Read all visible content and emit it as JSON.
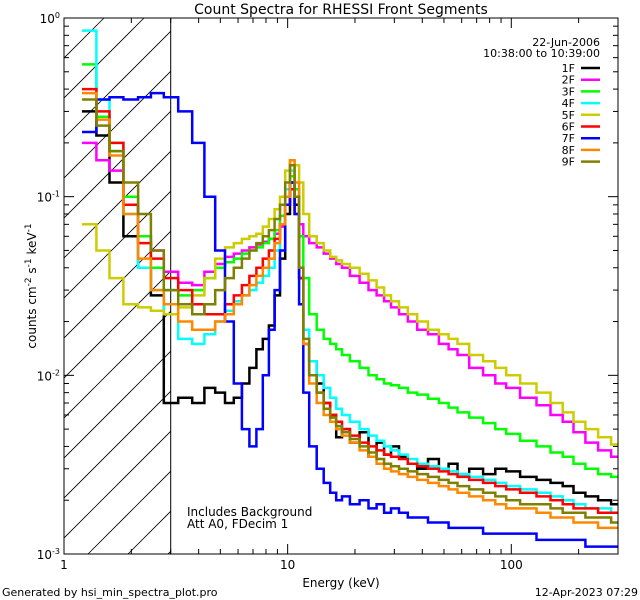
{
  "chart_data": {
    "type": "line",
    "title": "Count Spectra for RHESSI Front Segments",
    "xlabel": "Energy (keV)",
    "ylabel_parts": {
      "base": "counts cm",
      "exp1": "-2",
      "mid": " s",
      "exp2": "-1",
      "unit": " keV",
      "exp3": "-1"
    },
    "x_scale": "log",
    "y_scale": "log",
    "xlim": [
      1,
      300
    ],
    "ylim": [
      0.001,
      1
    ],
    "x_ticks": [
      {
        "value": 1,
        "label": "1"
      },
      {
        "value": 10,
        "label": "10"
      },
      {
        "value": 100,
        "label": "100"
      }
    ],
    "y_ticks": [
      {
        "value": 0.001,
        "base": "10",
        "exp": "-3"
      },
      {
        "value": 0.01,
        "base": "10",
        "exp": "-2"
      },
      {
        "value": 0.1,
        "base": "10",
        "exp": "-1"
      },
      {
        "value": 1,
        "base": "10",
        "exp": "0"
      }
    ],
    "date": "22-Jun-2006",
    "time_range": "10:38:00 to 10:39:00",
    "annotations": [
      "Includes Background",
      "Att A0, FDecim 1"
    ],
    "hatch_region": {
      "x_from": 1,
      "x_to": 3
    },
    "energy": [
      1.3,
      1.5,
      1.7,
      2.0,
      2.3,
      2.6,
      3.0,
      3.5,
      4.0,
      4.5,
      5.0,
      5.5,
      6.0,
      6.5,
      7.0,
      7.5,
      8.0,
      8.5,
      9.0,
      9.5,
      10.0,
      10.5,
      11.0,
      11.5,
      12.0,
      13.0,
      14.0,
      15.0,
      16.0,
      17.0,
      18.0,
      20.0,
      22.0,
      24.0,
      26.0,
      28.0,
      30.0,
      33.0,
      36.0,
      40.0,
      45.0,
      50.0,
      55.0,
      60.0,
      70.0,
      80.0,
      90.0,
      100.0,
      120.0,
      140.0,
      160.0,
      180.0,
      200.0,
      230.0,
      260.0,
      300.0
    ],
    "series": [
      {
        "name": "1F",
        "color": "#000000",
        "values": [
          0.3,
          0.22,
          0.12,
          0.06,
          0.04,
          0.028,
          0.007,
          0.0075,
          0.007,
          0.0085,
          0.008,
          0.007,
          0.0075,
          0.009,
          0.011,
          0.014,
          0.016,
          0.019,
          0.028,
          0.045,
          0.08,
          0.12,
          0.09,
          0.035,
          0.015,
          0.012,
          0.009,
          0.007,
          0.006,
          0.0045,
          0.005,
          0.0042,
          0.0048,
          0.0035,
          0.0042,
          0.0036,
          0.004,
          0.0035,
          0.0032,
          0.003,
          0.0034,
          0.003,
          0.0032,
          0.0028,
          0.003,
          0.0028,
          0.003,
          0.0029,
          0.0027,
          0.0026,
          0.0025,
          0.0024,
          0.0022,
          0.0021,
          0.002,
          0.0019
        ]
      },
      {
        "name": "2F",
        "color": "#ff00ff",
        "values": [
          0.2,
          0.16,
          0.14,
          0.09,
          0.06,
          0.05,
          0.038,
          0.033,
          0.032,
          0.038,
          0.042,
          0.046,
          0.048,
          0.05,
          0.052,
          0.054,
          0.056,
          0.058,
          0.062,
          0.068,
          0.09,
          0.12,
          0.1,
          0.07,
          0.06,
          0.055,
          0.052,
          0.048,
          0.045,
          0.042,
          0.04,
          0.036,
          0.033,
          0.03,
          0.028,
          0.026,
          0.024,
          0.022,
          0.02,
          0.018,
          0.017,
          0.015,
          0.014,
          0.013,
          0.011,
          0.01,
          0.009,
          0.0085,
          0.0075,
          0.0068,
          0.006,
          0.0055,
          0.0048,
          0.0042,
          0.0038,
          0.0035
        ]
      },
      {
        "name": "3F",
        "color": "#00ff00",
        "values": [
          0.55,
          0.28,
          0.18,
          0.1,
          0.06,
          0.04,
          0.03,
          0.028,
          0.03,
          0.035,
          0.04,
          0.043,
          0.045,
          0.048,
          0.05,
          0.052,
          0.055,
          0.058,
          0.065,
          0.078,
          0.1,
          0.13,
          0.11,
          0.06,
          0.035,
          0.022,
          0.018,
          0.016,
          0.015,
          0.014,
          0.013,
          0.012,
          0.011,
          0.01,
          0.0095,
          0.009,
          0.0088,
          0.0085,
          0.008,
          0.0078,
          0.0074,
          0.007,
          0.0066,
          0.0062,
          0.0058,
          0.0054,
          0.005,
          0.0047,
          0.0043,
          0.004,
          0.0037,
          0.0035,
          0.0032,
          0.003,
          0.0028,
          0.0027
        ]
      },
      {
        "name": "4F",
        "color": "#00ffff",
        "values": [
          0.85,
          0.35,
          0.2,
          0.08,
          0.04,
          0.03,
          0.022,
          0.016,
          0.015,
          0.017,
          0.02,
          0.023,
          0.026,
          0.028,
          0.03,
          0.033,
          0.036,
          0.04,
          0.05,
          0.07,
          0.11,
          0.14,
          0.1,
          0.04,
          0.018,
          0.012,
          0.01,
          0.0085,
          0.0075,
          0.0065,
          0.006,
          0.0055,
          0.005,
          0.0046,
          0.0043,
          0.004,
          0.0038,
          0.0036,
          0.0034,
          0.0032,
          0.0031,
          0.003,
          0.0029,
          0.0028,
          0.0027,
          0.0026,
          0.0025,
          0.0024,
          0.0023,
          0.0022,
          0.0021,
          0.002,
          0.0019,
          0.0018,
          0.0018,
          0.0017
        ]
      },
      {
        "name": "5F",
        "color": "#cccc00",
        "values": [
          0.07,
          0.05,
          0.035,
          0.025,
          0.024,
          0.023,
          0.022,
          0.024,
          0.028,
          0.035,
          0.045,
          0.052,
          0.055,
          0.058,
          0.06,
          0.062,
          0.068,
          0.075,
          0.085,
          0.1,
          0.14,
          0.16,
          0.15,
          0.12,
          0.08,
          0.06,
          0.055,
          0.05,
          0.046,
          0.044,
          0.042,
          0.04,
          0.037,
          0.034,
          0.031,
          0.028,
          0.026,
          0.024,
          0.022,
          0.02,
          0.018,
          0.017,
          0.016,
          0.015,
          0.013,
          0.012,
          0.011,
          0.01,
          0.009,
          0.008,
          0.007,
          0.0062,
          0.0055,
          0.005,
          0.0045,
          0.0041
        ]
      },
      {
        "name": "6F",
        "color": "#ff0000",
        "values": [
          0.4,
          0.3,
          0.2,
          0.09,
          0.055,
          0.045,
          0.035,
          0.03,
          0.025,
          0.022,
          0.022,
          0.025,
          0.028,
          0.032,
          0.036,
          0.04,
          0.045,
          0.05,
          0.058,
          0.07,
          0.09,
          0.11,
          0.08,
          0.035,
          0.015,
          0.01,
          0.008,
          0.007,
          0.006,
          0.0055,
          0.005,
          0.0046,
          0.0042,
          0.004,
          0.0038,
          0.0036,
          0.0035,
          0.0034,
          0.0032,
          0.0031,
          0.003,
          0.0029,
          0.0028,
          0.0027,
          0.0026,
          0.0025,
          0.0024,
          0.0023,
          0.0022,
          0.0021,
          0.002,
          0.0019,
          0.0018,
          0.0018,
          0.0017,
          0.0017
        ]
      },
      {
        "name": "7F",
        "color": "#0000ff",
        "values": [
          0.23,
          0.35,
          0.36,
          0.35,
          0.36,
          0.38,
          0.36,
          0.3,
          0.2,
          0.1,
          0.05,
          0.02,
          0.009,
          0.005,
          0.004,
          0.005,
          0.01,
          0.018,
          0.03,
          0.05,
          0.09,
          0.12,
          0.08,
          0.025,
          0.008,
          0.004,
          0.003,
          0.0025,
          0.0022,
          0.002,
          0.0021,
          0.0019,
          0.002,
          0.0018,
          0.0019,
          0.0017,
          0.0018,
          0.0017,
          0.0016,
          0.0016,
          0.0015,
          0.0015,
          0.0014,
          0.0014,
          0.0014,
          0.0013,
          0.0013,
          0.0013,
          0.0013,
          0.0012,
          0.0012,
          0.0012,
          0.0012,
          0.0011,
          0.0011,
          0.0011
        ]
      },
      {
        "name": "8F",
        "color": "#ff8800",
        "values": [
          0.38,
          0.27,
          0.17,
          0.08,
          0.045,
          0.03,
          0.025,
          0.02,
          0.018,
          0.018,
          0.02,
          0.022,
          0.025,
          0.028,
          0.032,
          0.036,
          0.04,
          0.045,
          0.055,
          0.07,
          0.1,
          0.16,
          0.12,
          0.04,
          0.015,
          0.009,
          0.007,
          0.006,
          0.0055,
          0.005,
          0.0046,
          0.0042,
          0.0038,
          0.0035,
          0.0032,
          0.003,
          0.0029,
          0.0028,
          0.0027,
          0.0026,
          0.0025,
          0.0024,
          0.0023,
          0.0022,
          0.0021,
          0.002,
          0.0019,
          0.0018,
          0.0018,
          0.0017,
          0.0016,
          0.0016,
          0.0015,
          0.0015,
          0.0014,
          0.0014
        ]
      },
      {
        "name": "9F",
        "color": "#808000",
        "values": [
          0.35,
          0.25,
          0.18,
          0.12,
          0.08,
          0.05,
          0.03,
          0.025,
          0.022,
          0.025,
          0.03,
          0.035,
          0.04,
          0.045,
          0.05,
          0.055,
          0.06,
          0.065,
          0.075,
          0.09,
          0.12,
          0.15,
          0.1,
          0.04,
          0.016,
          0.01,
          0.008,
          0.0065,
          0.0058,
          0.0052,
          0.0048,
          0.0044,
          0.004,
          0.0037,
          0.0034,
          0.0032,
          0.0031,
          0.003,
          0.0029,
          0.0028,
          0.0027,
          0.0026,
          0.0025,
          0.0024,
          0.0023,
          0.0022,
          0.0021,
          0.002,
          0.0019,
          0.0019,
          0.0018,
          0.0017,
          0.0017,
          0.0016,
          0.0016,
          0.0015
        ]
      }
    ]
  },
  "footer": {
    "generated_by": "Generated by hsi_min_spectra_plot.pro",
    "timestamp": "12-Apr-2023 07:29"
  }
}
